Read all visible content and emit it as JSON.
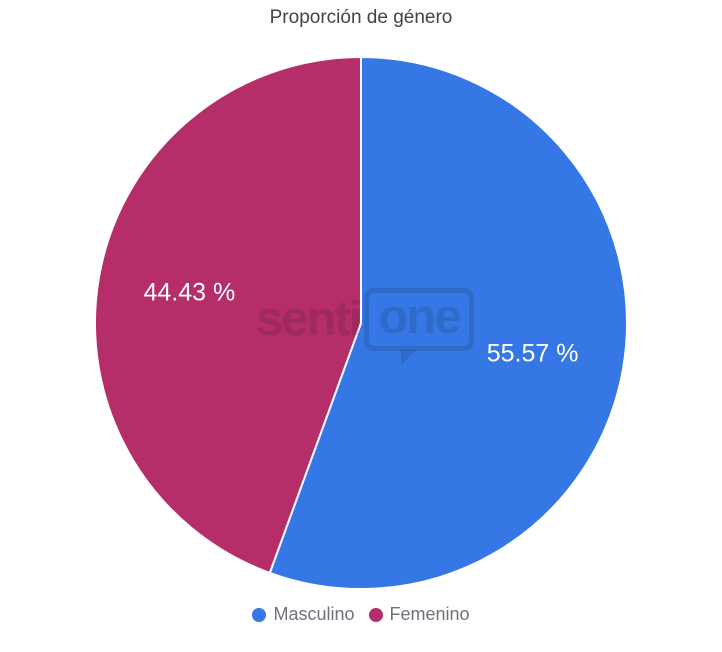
{
  "chart_data": {
    "type": "pie",
    "title": "Proporción de género",
    "slices": [
      {
        "label": "Masculino",
        "value": 55.57,
        "display_label": "55.57 %",
        "color": "#3477e5"
      },
      {
        "label": "Femenino",
        "value": 44.43,
        "display_label": "44.43 %",
        "color": "#b52d69"
      }
    ],
    "start_angle_deg": 0,
    "direction": "clockwise",
    "legend_position": "bottom",
    "value_label_color": "#ffffff",
    "slice_border_color": "#ffffff"
  },
  "watermark": {
    "brand_left": "senti",
    "brand_right": "one"
  }
}
